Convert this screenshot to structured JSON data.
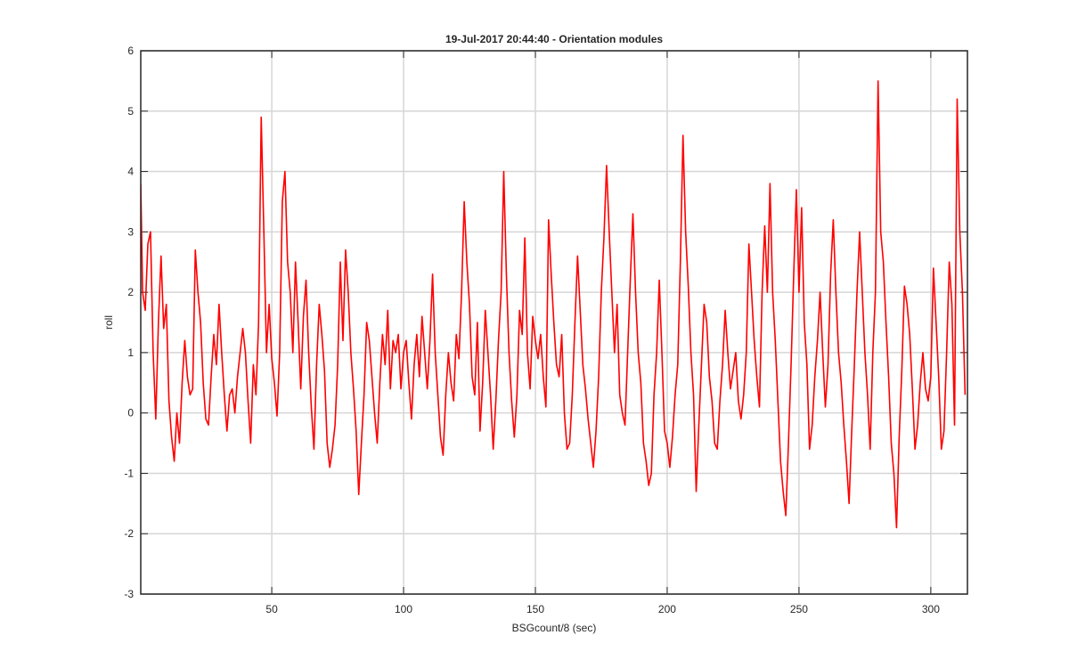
{
  "chart_data": {
    "type": "line",
    "title": "19-Jul-2017 20:44:40 - Orientation modules",
    "xlabel": "BSGcount/8 (sec)",
    "ylabel": "roll",
    "xlim": [
      0.3,
      313.9
    ],
    "ylim": [
      -3,
      6
    ],
    "xticks": [
      50,
      100,
      150,
      200,
      250,
      300
    ],
    "yticks": [
      -3,
      -2,
      -1,
      0,
      1,
      2,
      3,
      4,
      5,
      6
    ],
    "grid": true,
    "x": [
      0.3,
      1,
      2,
      3,
      4,
      5,
      6,
      7,
      8,
      9,
      10,
      11,
      12,
      13,
      14,
      15,
      16,
      17,
      18,
      19,
      20,
      21,
      22,
      23,
      24,
      25,
      26,
      27,
      28,
      29,
      30,
      31,
      32,
      33,
      34,
      35,
      36,
      37,
      38,
      39,
      40,
      41,
      42,
      43,
      44,
      45,
      46,
      47,
      48,
      49,
      50,
      51,
      52,
      53,
      54,
      55,
      56,
      57,
      58,
      59,
      60,
      61,
      62,
      63,
      64,
      65,
      66,
      67,
      68,
      69,
      70,
      71,
      72,
      73,
      74,
      75,
      76,
      77,
      78,
      79,
      80,
      81,
      82,
      83,
      84,
      85,
      86,
      87,
      88,
      89,
      90,
      91,
      92,
      93,
      94,
      95,
      96,
      97,
      98,
      99,
      100,
      101,
      102,
      103,
      104,
      105,
      106,
      107,
      108,
      109,
      110,
      111,
      112,
      113,
      114,
      115,
      116,
      117,
      118,
      119,
      120,
      121,
      122,
      123,
      124,
      125,
      126,
      127,
      128,
      129,
      130,
      131,
      132,
      133,
      134,
      135,
      136,
      137,
      138,
      139,
      140,
      141,
      142,
      143,
      144,
      145,
      146,
      147,
      148,
      149,
      150,
      151,
      152,
      153,
      154,
      155,
      156,
      157,
      158,
      159,
      160,
      161,
      162,
      163,
      164,
      165,
      166,
      167,
      168,
      169,
      170,
      171,
      172,
      173,
      174,
      175,
      176,
      177,
      178,
      179,
      180,
      181,
      182,
      183,
      184,
      185,
      186,
      187,
      188,
      189,
      190,
      191,
      192,
      193,
      194,
      195,
      196,
      197,
      198,
      199,
      200,
      201,
      202,
      203,
      204,
      205,
      206,
      207,
      208,
      209,
      210,
      211,
      212,
      213,
      214,
      215,
      216,
      217,
      218,
      219,
      220,
      221,
      222,
      223,
      224,
      225,
      226,
      227,
      228,
      229,
      230,
      231,
      232,
      233,
      234,
      235,
      236,
      237,
      238,
      239,
      240,
      241,
      242,
      243,
      244,
      245,
      246,
      247,
      248,
      249,
      250,
      251,
      252,
      253,
      254,
      255,
      256,
      257,
      258,
      259,
      260,
      261,
      262,
      263,
      264,
      265,
      266,
      267,
      268,
      269,
      270,
      271,
      272,
      273,
      274,
      275,
      276,
      277,
      278,
      279,
      280,
      281,
      282,
      283,
      284,
      285,
      286,
      287,
      288,
      289,
      290,
      291,
      292,
      293,
      294,
      295,
      296,
      297,
      298,
      299,
      300,
      301,
      302,
      303,
      304,
      305,
      306,
      307,
      308,
      309,
      310,
      311,
      312,
      313
    ],
    "series": [
      {
        "color": "#ff0000",
        "values": [
          3.8,
          2.0,
          1.7,
          2.8,
          3.0,
          1.0,
          -0.1,
          1.5,
          2.6,
          1.4,
          1.8,
          0.2,
          -0.4,
          -0.8,
          0.0,
          -0.5,
          0.5,
          1.2,
          0.6,
          0.3,
          0.4,
          2.7,
          2.0,
          1.5,
          0.5,
          -0.1,
          -0.2,
          0.6,
          1.3,
          0.8,
          1.8,
          1.0,
          0.3,
          -0.3,
          0.3,
          0.4,
          0.0,
          0.6,
          1.0,
          1.4,
          1.0,
          0.2,
          -0.5,
          0.8,
          0.3,
          1.5,
          4.9,
          3.0,
          1.0,
          1.8,
          0.9,
          0.5,
          -0.05,
          1.0,
          3.5,
          4.0,
          2.5,
          2.0,
          1.0,
          2.5,
          1.5,
          0.4,
          1.6,
          2.2,
          1.0,
          0.1,
          -0.6,
          0.8,
          1.8,
          1.3,
          0.7,
          -0.5,
          -0.9,
          -0.6,
          -0.2,
          0.8,
          2.5,
          1.2,
          2.7,
          2.0,
          1.0,
          0.4,
          -0.3,
          -1.35,
          -0.5,
          0.3,
          1.5,
          1.2,
          0.6,
          0.0,
          -0.5,
          0.5,
          1.3,
          0.8,
          1.7,
          0.4,
          1.2,
          1.0,
          1.3,
          0.4,
          1.0,
          1.2,
          0.5,
          -0.1,
          0.8,
          1.3,
          0.6,
          1.6,
          1.0,
          0.4,
          1.2,
          2.3,
          1.0,
          0.3,
          -0.4,
          -0.7,
          0.3,
          1.0,
          0.5,
          0.2,
          1.3,
          0.9,
          2.0,
          3.5,
          2.5,
          1.8,
          0.6,
          0.3,
          1.5,
          -0.3,
          0.5,
          1.7,
          1.0,
          0.3,
          -0.6,
          0.2,
          1.2,
          2.0,
          4.0,
          2.3,
          1.0,
          0.2,
          -0.4,
          0.3,
          1.7,
          1.3,
          2.9,
          1.0,
          0.4,
          1.6,
          1.2,
          0.9,
          1.3,
          0.6,
          0.1,
          3.2,
          2.3,
          1.5,
          0.8,
          0.6,
          1.3,
          0.0,
          -0.6,
          -0.5,
          0.3,
          1.5,
          2.6,
          1.7,
          0.8,
          0.4,
          -0.1,
          -0.5,
          -0.9,
          -0.3,
          0.6,
          2.0,
          2.9,
          4.1,
          3.0,
          2.0,
          1.0,
          1.8,
          0.3,
          0.0,
          -0.2,
          1.0,
          2.2,
          3.3,
          2.0,
          1.0,
          0.5,
          -0.5,
          -0.8,
          -1.2,
          -1.0,
          0.3,
          1.0,
          2.2,
          1.0,
          -0.3,
          -0.5,
          -0.9,
          -0.4,
          0.3,
          0.8,
          2.5,
          4.6,
          3.0,
          2.1,
          1.0,
          0.3,
          -1.3,
          -0.2,
          0.8,
          1.8,
          1.5,
          0.6,
          0.2,
          -0.5,
          -0.6,
          0.2,
          0.8,
          1.7,
          1.0,
          0.4,
          0.7,
          1.0,
          0.2,
          -0.1,
          0.3,
          1.0,
          2.8,
          2.0,
          1.2,
          0.6,
          0.1,
          2.0,
          3.1,
          2.0,
          3.8,
          2.0,
          1.2,
          0.2,
          -0.8,
          -1.3,
          -1.7,
          -0.5,
          0.8,
          2.3,
          3.7,
          2.0,
          3.4,
          1.5,
          0.8,
          -0.6,
          -0.2,
          0.6,
          1.2,
          2.0,
          1.0,
          0.1,
          0.8,
          2.3,
          3.2,
          2.0,
          1.0,
          0.5,
          -0.2,
          -0.8,
          -1.5,
          -0.3,
          0.8,
          2.0,
          3.0,
          2.0,
          1.0,
          0.3,
          -0.6,
          1.0,
          2.0,
          5.5,
          3.0,
          2.5,
          1.5,
          0.6,
          -0.5,
          -1.0,
          -1.9,
          -0.4,
          0.7,
          2.1,
          1.8,
          1.3,
          0.4,
          -0.6,
          -0.2,
          0.5,
          1.0,
          0.4,
          0.2,
          0.6,
          2.4,
          1.5,
          0.6,
          -0.6,
          -0.3,
          1.0,
          2.5,
          1.8,
          -0.2,
          5.2,
          3.0,
          2.0,
          0.3
        ]
      }
    ]
  }
}
